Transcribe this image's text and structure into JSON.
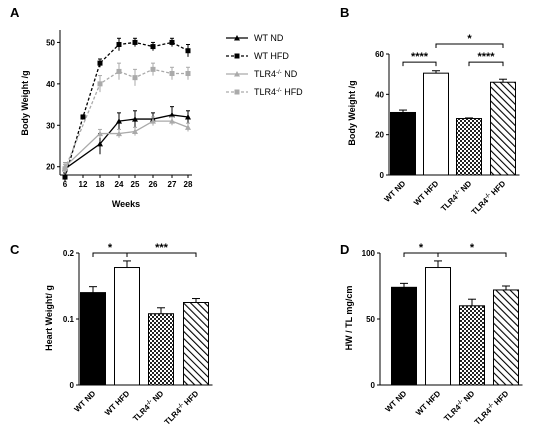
{
  "chart_data": [
    {
      "panel": "A",
      "type": "line",
      "xlabel": "Weeks",
      "ylabel": "Body Weight /g",
      "x": [
        6,
        12,
        18,
        24,
        25,
        26,
        27,
        28
      ],
      "ylim": [
        18,
        53
      ],
      "yticks": [
        20,
        30,
        40,
        50
      ],
      "series": [
        {
          "name": "WT ND",
          "values": [
            19.5,
            null,
            25.5,
            31,
            31.5,
            31.5,
            32.5,
            32
          ],
          "errors": [
            1.5,
            null,
            2.5,
            2,
            2,
            1.5,
            2,
            1.5
          ],
          "color": "#000000",
          "marker": "triangle",
          "dash": false
        },
        {
          "name": "WT HFD",
          "values": [
            17.5,
            32,
            45,
            49.5,
            50,
            49,
            50,
            48
          ],
          "errors": [
            1,
            0.5,
            1,
            1.5,
            1,
            1,
            1,
            1.5
          ],
          "color": "#000000",
          "marker": "square",
          "dash": true
        },
        {
          "name": "TLR4-/- ND",
          "values": [
            20,
            null,
            28,
            28,
            28.5,
            31,
            31,
            29.5
          ],
          "errors": [
            1,
            null,
            1,
            1,
            1,
            1,
            1,
            1
          ],
          "color": "#aaaaaa",
          "marker": "triangle",
          "dash": false
        },
        {
          "name": "TLR4-/- HFD",
          "values": [
            19.5,
            null,
            40,
            43,
            41.5,
            43.5,
            42.5,
            42.5
          ],
          "errors": [
            1,
            null,
            2,
            2,
            2,
            1.5,
            1.5,
            1.5
          ],
          "color": "#aaaaaa",
          "marker": "square",
          "dash": true
        }
      ]
    },
    {
      "panel": "B",
      "type": "bar",
      "ylabel": "Body Weight /g",
      "categories": [
        "WT ND",
        "WT HFD",
        "TLR4-/- ND",
        "TLR4-/- HFD"
      ],
      "values": [
        31,
        50.5,
        28,
        46
      ],
      "errors": [
        1.2,
        1.2,
        0.3,
        1.5
      ],
      "ylim": [
        0,
        60
      ],
      "yticks": [
        0,
        20,
        40,
        60
      ],
      "significance": [
        {
          "pair": [
            0,
            1
          ],
          "label": "****",
          "level": 56
        },
        {
          "pair": [
            2,
            3
          ],
          "label": "****",
          "level": 56
        },
        {
          "pair": [
            1,
            3
          ],
          "label": "*",
          "level": 66
        }
      ]
    },
    {
      "panel": "C",
      "type": "bar",
      "ylabel": "Heart Weight/ g",
      "categories": [
        "WT ND",
        "WT HFD",
        "TLR4-/- ND",
        "TLR4-/- HFD"
      ],
      "values": [
        0.14,
        0.178,
        0.108,
        0.125
      ],
      "errors": [
        0.009,
        0.01,
        0.009,
        0.006
      ],
      "ylim": [
        0,
        0.2
      ],
      "yticks": [
        0.0,
        0.1,
        0.2
      ],
      "significance": [
        {
          "pair": [
            0,
            1
          ],
          "label": "*",
          "level": 0.2
        },
        {
          "pair": [
            1,
            3
          ],
          "label": "***",
          "level": 0.2
        }
      ]
    },
    {
      "panel": "D",
      "type": "bar",
      "ylabel": "HW / TL mg/cm",
      "categories": [
        "WT ND",
        "WT HFD",
        "TLR4-/- ND",
        "TLR4-/- HFD"
      ],
      "values": [
        74,
        89,
        60,
        72
      ],
      "errors": [
        3,
        5,
        5,
        3
      ],
      "ylim": [
        0,
        100
      ],
      "yticks": [
        0,
        50,
        100
      ],
      "significance": [
        {
          "pair": [
            0,
            1
          ],
          "label": "*",
          "level": 100
        },
        {
          "pair": [
            1,
            3
          ],
          "label": "*",
          "level": 100
        }
      ]
    }
  ]
}
